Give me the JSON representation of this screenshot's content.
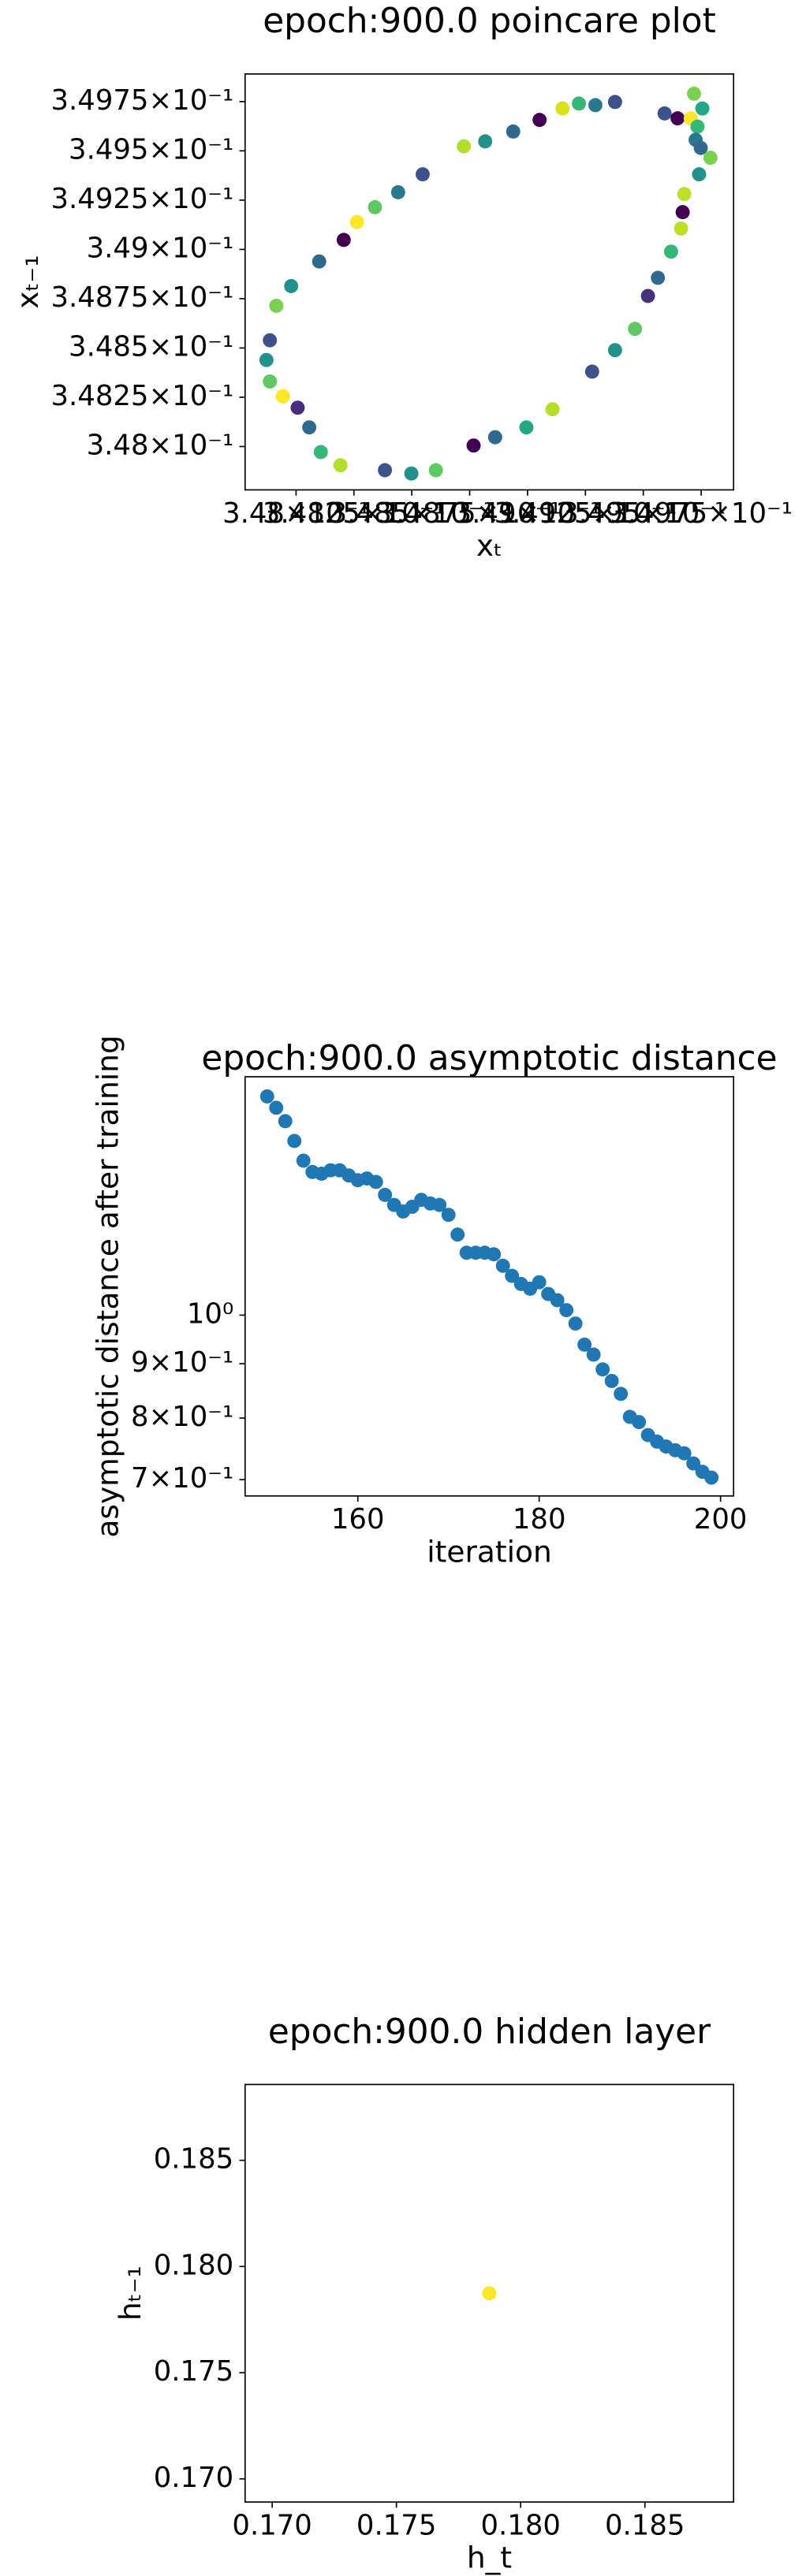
{
  "chart_data": [
    {
      "type": "scatter",
      "title": "epoch:900.0 poincare plot",
      "xlabel": "xₜ",
      "ylabel": "xₜ₋₁",
      "x": [
        0.349719,
        0.349755,
        0.349592,
        0.349648,
        0.349705,
        0.349734,
        0.349726,
        0.349748,
        0.34979,
        0.349741,
        0.349677,
        0.34967,
        0.349663,
        0.34962,
        0.349563,
        0.34952,
        0.349464,
        0.349378,
        0.349279,
        0.349108,
        0.348995,
        0.34886,
        0.348767,
        0.348604,
        0.348498,
        0.348384,
        0.348192,
        0.348107,
        0.348057,
        0.348007,
        0.347943,
        0.347887,
        0.347872,
        0.347887,
        0.347915,
        0.347979,
        0.3481,
        0.348206,
        0.348263,
        0.348341,
        0.348441,
        0.348547,
        0.348725,
        0.348817,
        0.348938,
        0.349052,
        0.349151,
        0.349222,
        0.349293,
        0.349378
      ],
      "y": [
        0.34979,
        0.349715,
        0.34969,
        0.349665,
        0.349665,
        0.349623,
        0.349556,
        0.349515,
        0.349465,
        0.349381,
        0.349281,
        0.349189,
        0.349106,
        0.348989,
        0.348856,
        0.348764,
        0.348597,
        0.348489,
        0.34838,
        0.348189,
        0.348097,
        0.348047,
        0.348005,
        0.34788,
        0.347863,
        0.34788,
        0.347905,
        0.347972,
        0.348097,
        0.348197,
        0.348255,
        0.34833,
        0.348439,
        0.348539,
        0.348714,
        0.348814,
        0.348939,
        0.349048,
        0.349139,
        0.349214,
        0.34929,
        0.349381,
        0.349523,
        0.349548,
        0.349598,
        0.349657,
        0.349715,
        0.34974,
        0.349732,
        0.349748
      ],
      "colors": [
        "#7ad151",
        "#22a884",
        "#3b528b",
        "#440154",
        "#fde725",
        "#35b779",
        "#2a788e",
        "#31688e",
        "#7ad151",
        "#21918c",
        "#bddf26",
        "#440154",
        "#bddf26",
        "#35b779",
        "#31688e",
        "#46327e",
        "#5ec962",
        "#21918c",
        "#3b528b",
        "#b5de2b",
        "#22a884",
        "#31688e",
        "#440154",
        "#5ec962",
        "#21918c",
        "#3b528b",
        "#b5de2b",
        "#35b779",
        "#31688e",
        "#472d7b",
        "#fde725",
        "#5ec962",
        "#21918c",
        "#3b528b",
        "#7ad151",
        "#21918c",
        "#31688e",
        "#440154",
        "#fde725",
        "#5ec962",
        "#2a788e",
        "#3b528b",
        "#b5de2b",
        "#21918c",
        "#31688e",
        "#440154",
        "#d8e219",
        "#35b779",
        "#2a788e",
        "#3b528b"
      ],
      "xlim": [
        0.34778,
        0.34989
      ],
      "ylim": [
        0.34778,
        0.34989
      ],
      "xticks": [
        {
          "value": 0.348,
          "label": "3.48×10⁻¹"
        },
        {
          "value": 0.34825,
          "label": "3.4825×10⁻¹"
        },
        {
          "value": 0.3485,
          "label": "3.485×10⁻¹"
        },
        {
          "value": 0.34875,
          "label": "3.4875×10⁻¹"
        },
        {
          "value": 0.349,
          "label": "3.49×10⁻¹"
        },
        {
          "value": 0.34925,
          "label": "3.4925×10⁻¹"
        },
        {
          "value": 0.3495,
          "label": "3.495×10⁻¹"
        },
        {
          "value": 0.34975,
          "label": "3.4975×10⁻¹"
        }
      ],
      "yticks": [
        {
          "value": 0.348,
          "label": "3.48×10⁻¹"
        },
        {
          "value": 0.34825,
          "label": "3.4825×10⁻¹"
        },
        {
          "value": 0.3485,
          "label": "3.485×10⁻¹"
        },
        {
          "value": 0.34875,
          "label": "3.4875×10⁻¹"
        },
        {
          "value": 0.349,
          "label": "3.49×10⁻¹"
        },
        {
          "value": 0.34925,
          "label": "3.4925×10⁻¹"
        },
        {
          "value": 0.3495,
          "label": "3.495×10⁻¹"
        },
        {
          "value": 0.34975,
          "label": "3.4975×10⁻¹"
        }
      ],
      "grid": false
    },
    {
      "type": "scatter",
      "title": "epoch:900.0 asymptotic distance",
      "xlabel": "iteration",
      "ylabel": "asymptotic distance after training",
      "x": [
        150,
        151,
        152,
        153,
        154,
        155,
        156,
        157,
        158,
        159,
        160,
        161,
        162,
        163,
        164,
        165,
        166,
        167,
        168,
        169,
        170,
        171,
        172,
        173,
        174,
        175,
        176,
        177,
        178,
        179,
        180,
        181,
        182,
        183,
        184,
        185,
        186,
        187,
        188,
        189,
        190,
        191,
        192,
        193,
        194,
        195,
        196,
        197,
        198,
        199
      ],
      "y": [
        1.607,
        1.568,
        1.523,
        1.459,
        1.398,
        1.364,
        1.359,
        1.369,
        1.369,
        1.354,
        1.34,
        1.345,
        1.335,
        1.298,
        1.27,
        1.252,
        1.265,
        1.284,
        1.274,
        1.27,
        1.243,
        1.191,
        1.145,
        1.145,
        1.145,
        1.141,
        1.113,
        1.089,
        1.07,
        1.059,
        1.074,
        1.047,
        1.033,
        1.011,
        0.982,
        0.938,
        0.918,
        0.889,
        0.867,
        0.843,
        0.802,
        0.793,
        0.771,
        0.76,
        0.752,
        0.746,
        0.741,
        0.725,
        0.712,
        0.703
      ],
      "color": "#1f77b4",
      "yscale": "log",
      "xlim": [
        147.57,
        201.44
      ],
      "ylim": [
        0.6756,
        1.677
      ],
      "xticks": [
        160,
        180,
        200
      ],
      "yticks": [
        {
          "value": 1,
          "label": "10⁰"
        },
        {
          "value": 0.9,
          "label": "9×10⁻¹"
        },
        {
          "value": 0.8,
          "label": "8×10⁻¹"
        },
        {
          "value": 0.7,
          "label": "7×10⁻¹"
        }
      ],
      "grid": false
    },
    {
      "type": "scatter",
      "title": "epoch:900.0 hidden layer",
      "xlabel": "h_t",
      "ylabel": "hₜ₋₁",
      "x": [
        0.17874
      ],
      "y": [
        0.17874
      ],
      "color": "#fde725",
      "xlim": [
        0.16891,
        0.18857
      ],
      "ylim": [
        0.16891,
        0.18857
      ],
      "xticks": [
        {
          "value": 0.17,
          "label": "0.170"
        },
        0.175,
        {
          "value": 0.18,
          "label": "0.180"
        },
        0.185
      ],
      "yticks": [
        {
          "value": 0.17,
          "label": "0.170"
        },
        0.175,
        {
          "value": 0.18,
          "label": "0.180"
        },
        0.185
      ],
      "grid": false
    }
  ]
}
